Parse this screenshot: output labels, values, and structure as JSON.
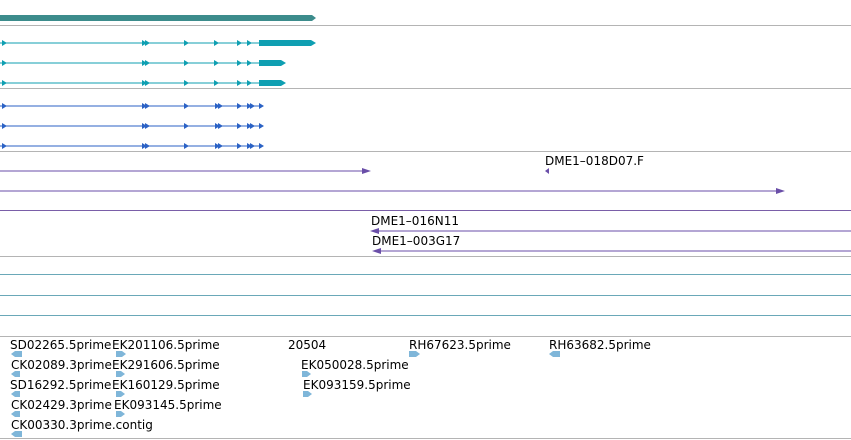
{
  "colors": {
    "background": "#ffffff",
    "track_divider": "#b4b4b4",
    "cdna_divider": "#6aa8b8",
    "gene_span": "#3c8c8c",
    "transcript_cyan": "#0f9fb2",
    "transcript_blue": "#2b62c5",
    "clone_purple": "#6a4ea8",
    "est_blue": "#7fb6d9"
  },
  "icons": [
    "strand-arrow-icon",
    "exon-block-icon"
  ],
  "labels": {
    "clone_018D07": "DME1–018D07.F",
    "clone_016N11": "DME1–016N11",
    "clone_003G17": "DME1–003G17",
    "est_SD02265": "SD02265.5prime",
    "est_EK201106": "EK201106.5prime",
    "est_20504": "20504",
    "est_RH67623": "RH67623.5prime",
    "est_RH63682": "RH63682.5prime",
    "est_CK02089": "CK02089.3prime",
    "est_EK291606": "EK291606.5prime",
    "est_EK050028": "EK050028.5prime",
    "est_SD16292": "SD16292.5prime",
    "est_EK160129": "EK160129.5prime",
    "est_EK093159": "EK093159.5prime",
    "est_CK02429": "CK02429.3prime",
    "est_EK093145": "EK093145.5prime",
    "est_CK00330": "CK00330.3prime.contig"
  }
}
